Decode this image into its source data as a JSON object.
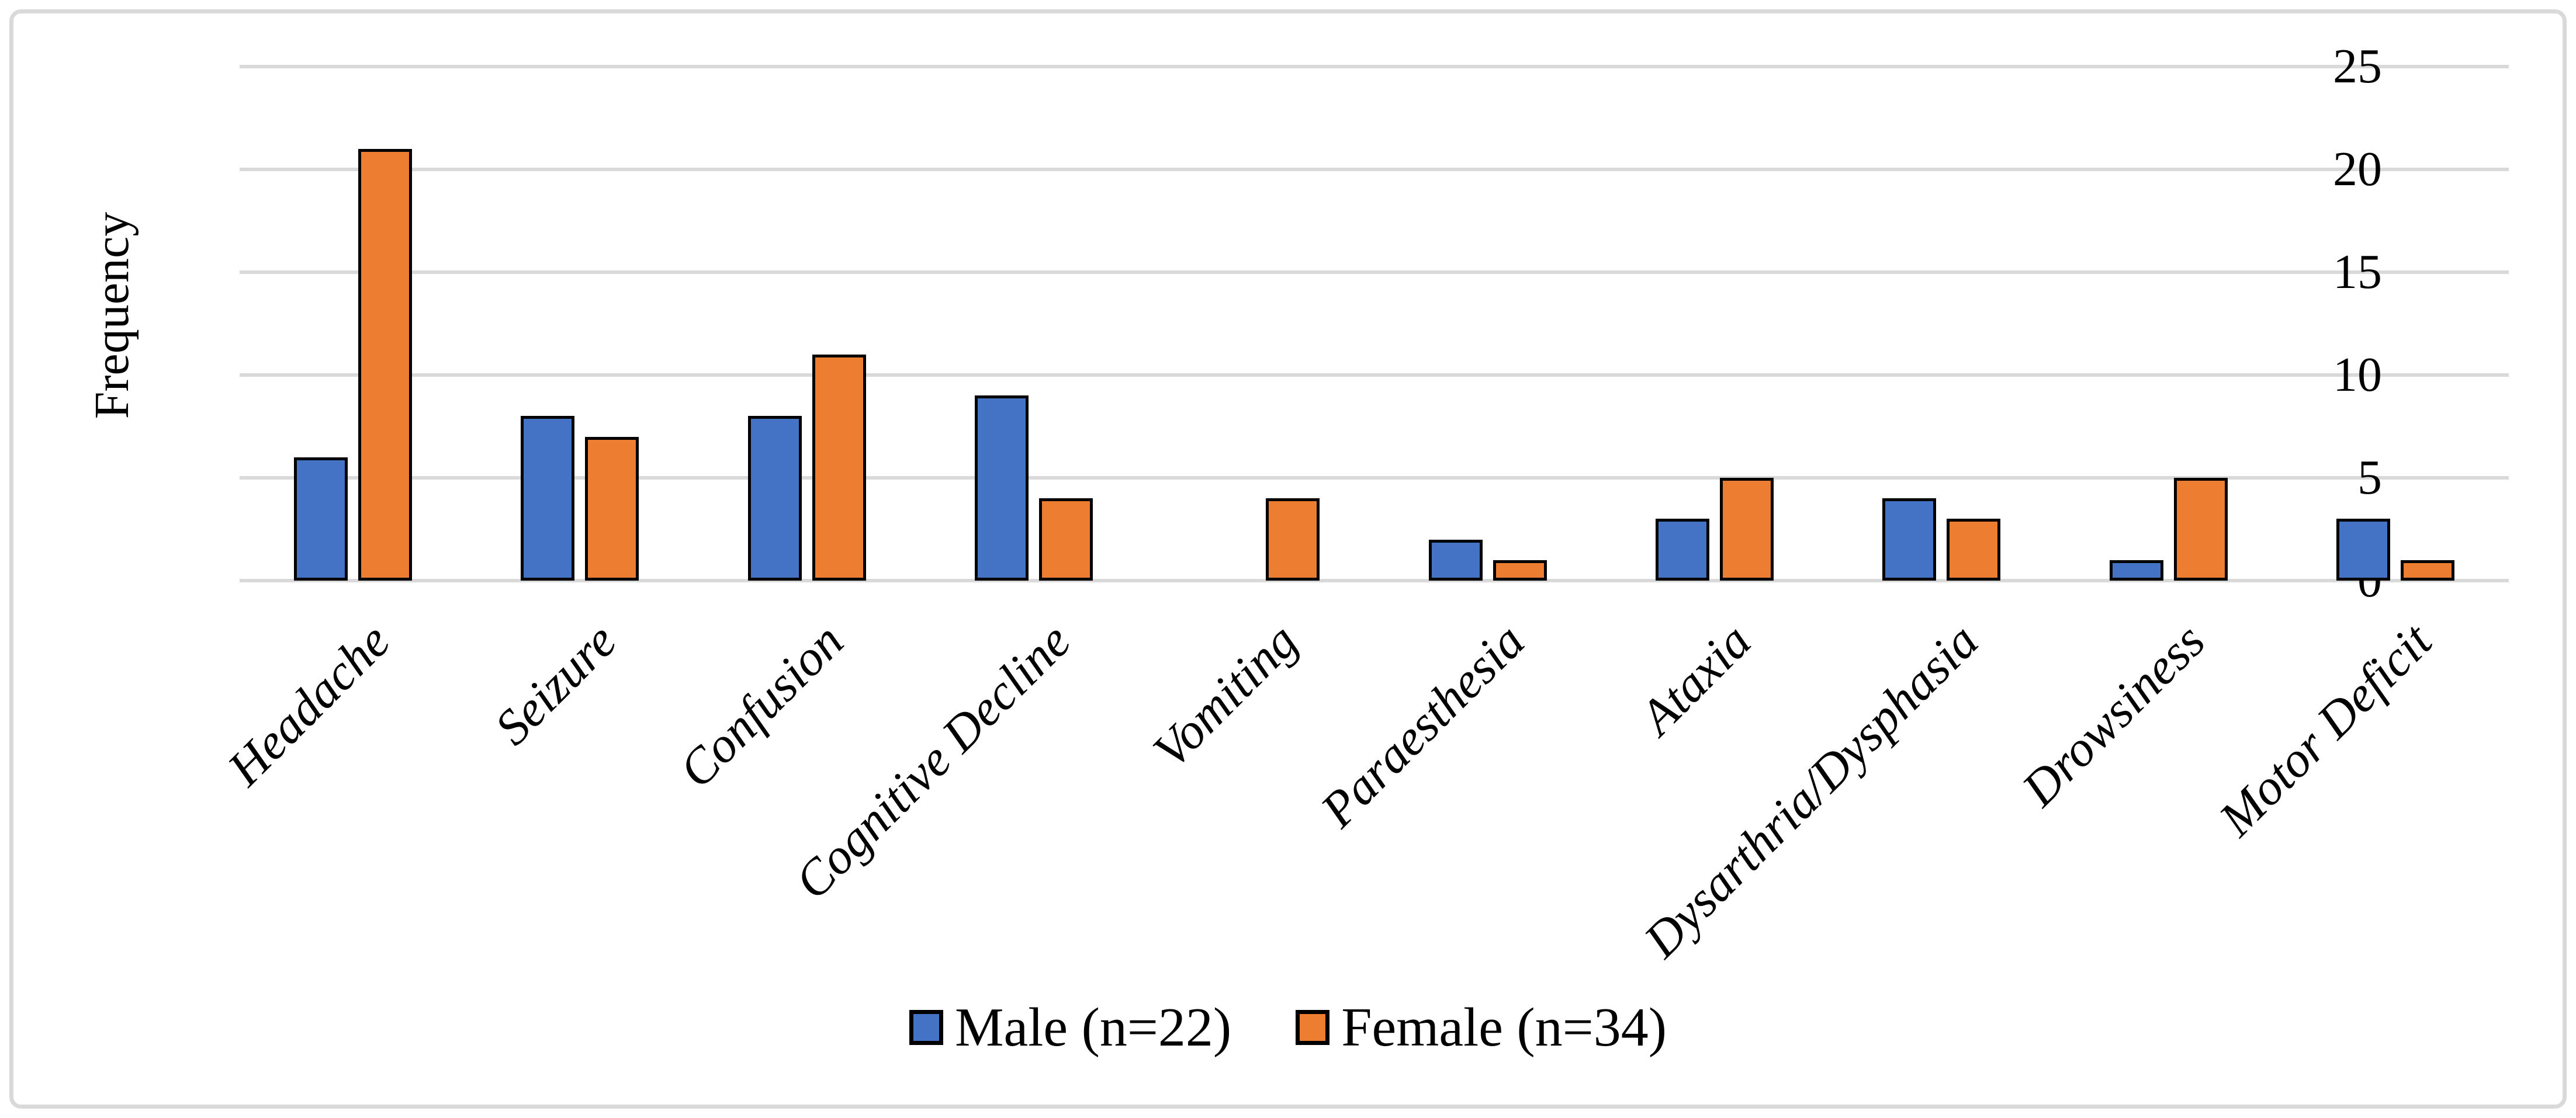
{
  "chart_data": {
    "type": "bar",
    "title": "",
    "ylabel": "Frequency",
    "xlabel": "",
    "categories": [
      "Headache",
      "Seizure",
      "Confusion",
      "Cognitive Decline",
      "Vomiting",
      "Paraesthesia",
      "Ataxia",
      "Dysarthria/Dysphasia",
      "Drowsiness",
      "Motor Deficit"
    ],
    "series": [
      {
        "name": "Male (n=22)",
        "color": "#4472C4",
        "values": [
          6,
          8,
          8,
          9,
          0,
          2,
          3,
          4,
          1,
          3
        ]
      },
      {
        "name": "Female (n=34)",
        "color": "#ED7D31",
        "values": [
          21,
          7,
          11,
          4,
          4,
          1,
          5,
          3,
          5,
          1
        ]
      }
    ],
    "ylim": [
      0,
      25
    ],
    "yticks": [
      0,
      5,
      10,
      15,
      20,
      25
    ],
    "grid": true,
    "legend_position": "bottom",
    "colors": {
      "bar_border": "#000000",
      "gridline": "#D9D9D9",
      "chart_border": "#D9D9D9",
      "text": "#000000",
      "background": "#FFFFFF"
    }
  }
}
